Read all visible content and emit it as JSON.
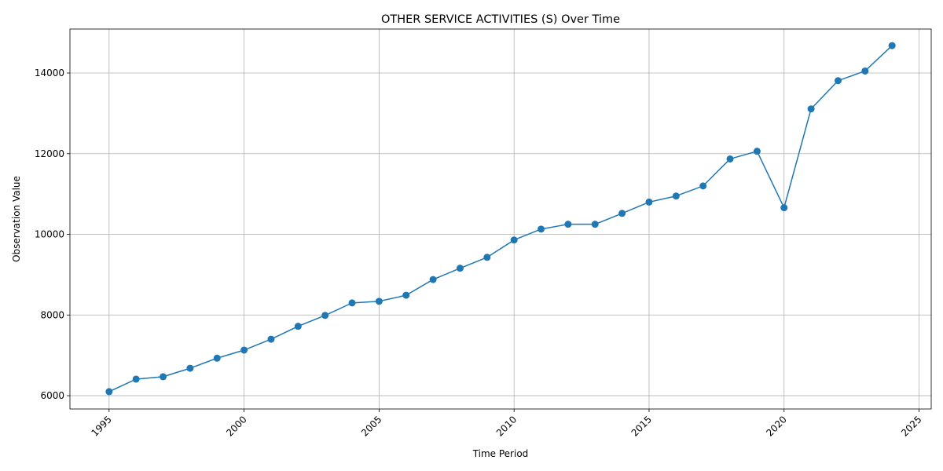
{
  "chart_data": {
    "type": "line",
    "title": "OTHER SERVICE ACTIVITIES (S) Over Time",
    "xlabel": "Time Period",
    "ylabel": "Observation Value",
    "xlim": [
      1993.55,
      2025.45
    ],
    "ylim": [
      5670,
      15090
    ],
    "xticks": [
      1995,
      2000,
      2005,
      2010,
      2015,
      2020,
      2025
    ],
    "xtick_labels": [
      "1995",
      "2000",
      "2005",
      "2010",
      "2015",
      "2020",
      "2025"
    ],
    "yticks": [
      6000,
      8000,
      10000,
      12000,
      14000
    ],
    "ytick_labels": [
      "6000",
      "8000",
      "10000",
      "12000",
      "14000"
    ],
    "grid": true,
    "line_color": "#1f77b4",
    "marker": "circle",
    "series": [
      {
        "x": [
          1995,
          1996,
          1997,
          1998,
          1999,
          2000,
          2001,
          2002,
          2003,
          2004,
          2005,
          2006,
          2007,
          2008,
          2009,
          2010,
          2011,
          2012,
          2013,
          2014,
          2015,
          2016,
          2017,
          2018,
          2019,
          2020,
          2021,
          2022,
          2023,
          2024
        ],
        "values": [
          6100,
          6410,
          6470,
          6680,
          6930,
          7130,
          7400,
          7720,
          7990,
          8300,
          8340,
          8490,
          8880,
          9160,
          9430,
          9860,
          10130,
          10250,
          10250,
          10520,
          10800,
          10950,
          11200,
          11870,
          12060,
          10660,
          13110,
          13810,
          14050,
          14680
        ]
      }
    ]
  }
}
